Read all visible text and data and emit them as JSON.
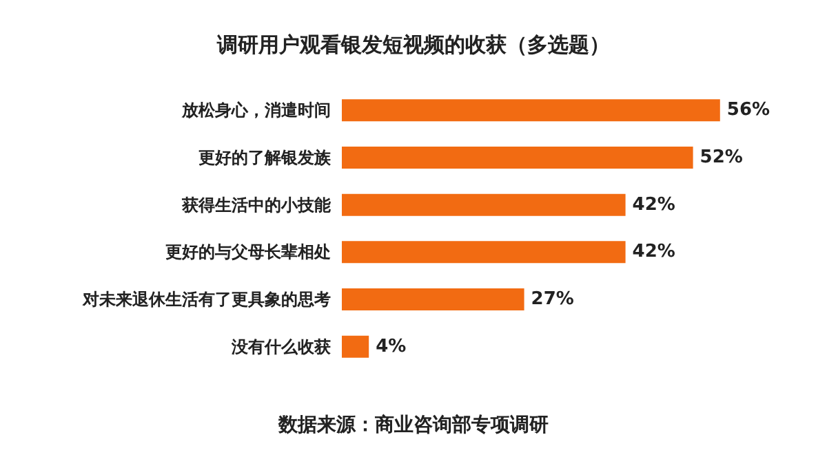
{
  "chart_data": {
    "type": "bar",
    "orientation": "horizontal",
    "title": "调研用户观看银发短视频的收获（多选题）",
    "categories": [
      "放松身心，消遣时间",
      "更好的了解银发族",
      "获得生活中的小技能",
      "更好的与父母长辈相处",
      "对未来退休生活有了更具象的思考",
      "没有什么收获"
    ],
    "values": [
      56,
      52,
      42,
      42,
      27,
      4
    ],
    "value_labels": [
      "56%",
      "52%",
      "42%",
      "42%",
      "27%",
      "4%"
    ],
    "color": "#f26b12",
    "annotations": [
      "数据来源：商业咨询部专项调研"
    ]
  }
}
